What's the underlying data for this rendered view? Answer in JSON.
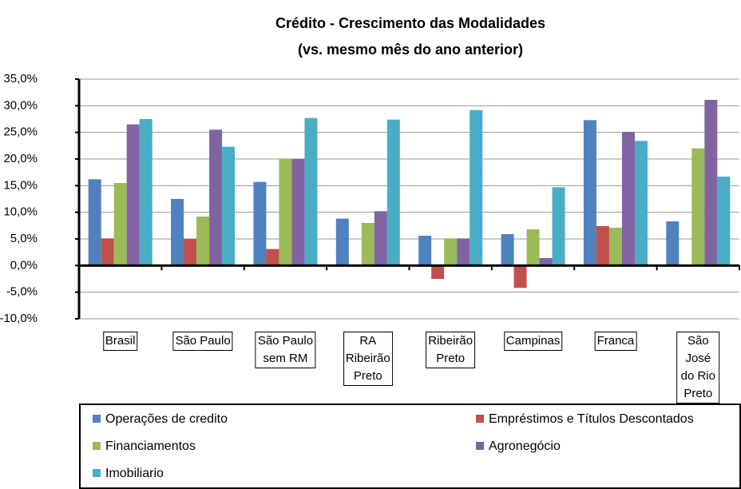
{
  "chart_data": {
    "type": "bar",
    "title": "Crédito - Crescimento das Modalidades",
    "subtitle": "(vs. mesmo mês do ano anterior)",
    "categories": [
      "Brasil",
      "São Paulo",
      "São Paulo\nsem RM",
      "RA\nRibeirão\nPreto",
      "Ribeirão\nPreto",
      "Campinas",
      "Franca",
      "São José\ndo Rio\nPreto"
    ],
    "series": [
      {
        "name": "Operações de credito",
        "color": "#4F81BD",
        "values": [
          16.2,
          12.5,
          15.7,
          8.8,
          5.6,
          5.9,
          27.3,
          8.3
        ]
      },
      {
        "name": "Empréstimos e Títulos Descontados",
        "color": "#C0504D",
        "values": [
          5.1,
          5.0,
          3.1,
          0,
          -2.5,
          -4.2,
          7.4,
          0
        ]
      },
      {
        "name": "Financiamentos",
        "color": "#9BBB59",
        "values": [
          15.5,
          9.2,
          20.1,
          8.0,
          5.1,
          6.8,
          7.1,
          22.0
        ]
      },
      {
        "name": "Agronegócio",
        "color": "#8064A2",
        "values": [
          26.5,
          25.5,
          20.0,
          10.2,
          5.1,
          1.4,
          25.1,
          31.1
        ]
      },
      {
        "name": "Imobiliario",
        "color": "#4BACC6",
        "values": [
          27.5,
          22.3,
          27.7,
          27.4,
          29.2,
          14.7,
          23.4,
          16.7
        ]
      }
    ],
    "ylim": [
      -10,
      35
    ],
    "yticks": [
      {
        "value": -10,
        "label": "-10,0%"
      },
      {
        "value": -5,
        "label": "-5,0%"
      },
      {
        "value": 0,
        "label": "0,0%"
      },
      {
        "value": 5,
        "label": "5,0%"
      },
      {
        "value": 10,
        "label": "10,0%"
      },
      {
        "value": 15,
        "label": "15,0%"
      },
      {
        "value": 20,
        "label": "20,0%"
      },
      {
        "value": 25,
        "label": "25,0%"
      },
      {
        "value": 30,
        "label": "30,0%"
      },
      {
        "value": 35,
        "label": "35,0%"
      }
    ],
    "grid": true
  }
}
